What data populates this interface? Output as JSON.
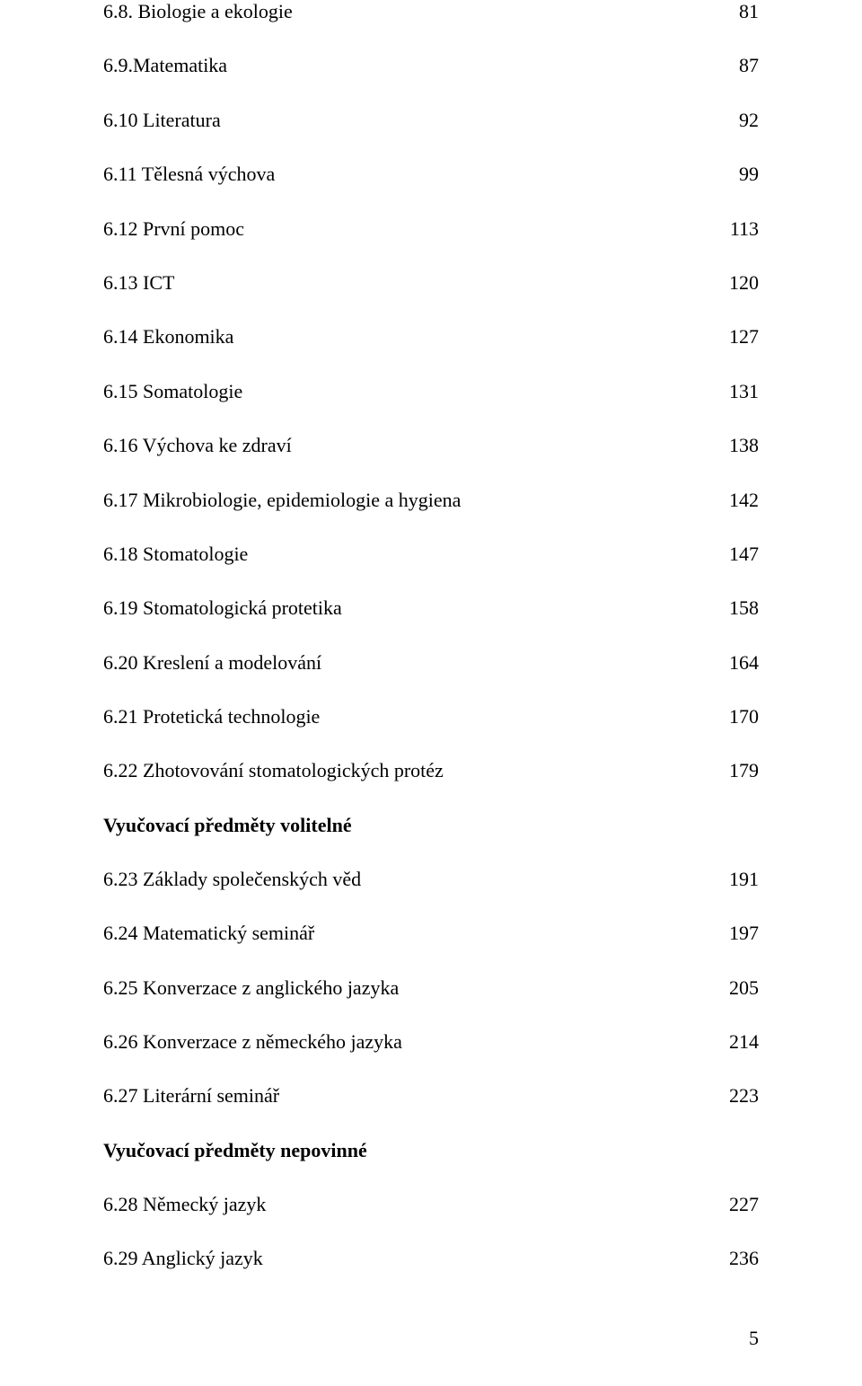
{
  "toc": {
    "group1": [
      {
        "label": "6.8. Biologie  a ekologie",
        "page": "81"
      },
      {
        "label": "6.9.Matematika",
        "page": "87"
      },
      {
        "label": "6.10 Literatura",
        "page": "92"
      },
      {
        "label": "6.11 Tělesná výchova",
        "page": "99"
      },
      {
        "label": "6.12 První pomoc",
        "page": "113"
      },
      {
        "label": "6.13 ICT",
        "page": "120"
      },
      {
        "label": "6.14 Ekonomika",
        "page": "127"
      },
      {
        "label": "6.15 Somatologie",
        "page": "131"
      },
      {
        "label": "6.16 Výchova ke zdraví",
        "page": "138"
      },
      {
        "label": "6.17 Mikrobiologie, epidemiologie a hygiena",
        "page": "142"
      },
      {
        "label": "6.18 Stomatologie",
        "page": "147"
      },
      {
        "label": "6.19 Stomatologická protetika",
        "page": "158"
      },
      {
        "label": "6.20 Kreslení a modelování",
        "page": "164"
      },
      {
        "label": "6.21 Protetická technologie",
        "page": "170"
      },
      {
        "label": "6.22 Zhotovování stomatologických protéz",
        "page": "179"
      }
    ],
    "heading1": "Vyučovací předměty volitelné",
    "group2": [
      {
        "label": "6.23 Základy společenských věd",
        "page": "191"
      },
      {
        "label": "6.24 Matematický seminář",
        "page": "197"
      },
      {
        "label": "6.25 Konverzace z anglického jazyka",
        "page": "205"
      },
      {
        "label": "6.26 Konverzace z německého jazyka",
        "page": "214"
      },
      {
        "label": "6.27 Literární seminář",
        "page": "223"
      }
    ],
    "heading2": "Vyučovací předměty nepovinné",
    "group3": [
      {
        "label": "6.28 Německý jazyk",
        "page": "227"
      },
      {
        "label": "6.29 Anglický jazyk",
        "page": "236"
      }
    ]
  },
  "pageNumber": "5"
}
